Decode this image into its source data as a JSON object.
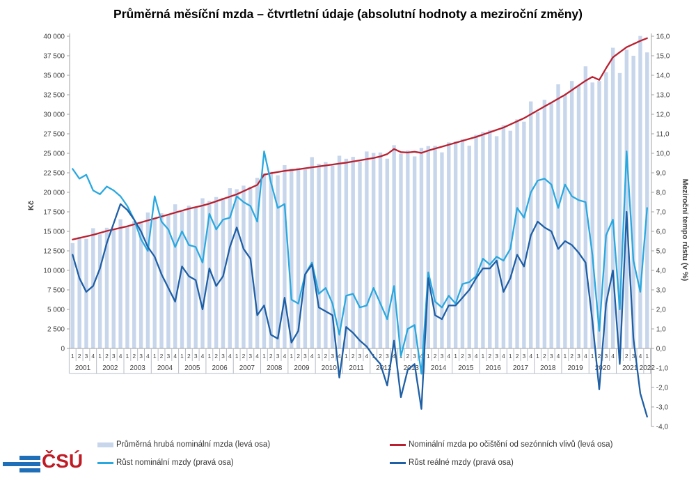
{
  "title": "Průměrná měsíční mzda – čtvrtletní údaje (absolutní hodnoty a meziroční změny)",
  "logo": {
    "text": "ČSÚ",
    "text_color": "#c01a24",
    "stripe_color": "#1f6fb8"
  },
  "colors": {
    "bar": "#c8d6ec",
    "seasonally_adjusted_line": "#b92030",
    "nominal_growth_line": "#29a8df",
    "real_growth_line": "#1e5fa5",
    "axis": "#a0a0a0",
    "tick_text": "#3f3f3f",
    "separator": "#b7bcc4"
  },
  "legend": {
    "rows": [
      [
        "Průměrná hrubá nominální mzda (levá osa)",
        "Nominální mzda po očištění od sezónních vlivů (levá osa)"
      ],
      [
        "Růst nominální mzdy (pravá osa)",
        "Růst reálné mzdy (pravá osa)"
      ]
    ]
  },
  "chart_data": {
    "type": "combo",
    "title": "Průměrná měsíční mzda – čtvrtletní údaje (absolutní hodnoty a meziroční změny)",
    "x_axis": {
      "years": [
        2001,
        2002,
        2003,
        2004,
        2005,
        2006,
        2007,
        2008,
        2009,
        2010,
        2011,
        2012,
        2013,
        2014,
        2015,
        2016,
        2017,
        2018,
        2019,
        2020,
        2021,
        2022
      ],
      "quarters_per_year": 4,
      "last_year_quarters": 1,
      "quarter_labels": [
        "1",
        "2",
        "3",
        "4"
      ]
    },
    "left_axis": {
      "label": "Kč",
      "min": 0,
      "max": 40000,
      "step": 2500
    },
    "right_axis": {
      "label": "Meziroční tempo růstu (v %)",
      "min": -4,
      "max": 16,
      "step": 1
    },
    "grid": false,
    "legend_position": "bottom",
    "series": [
      {
        "name": "Průměrná hrubá nominální mzda (levá osa)",
        "type": "bar",
        "axis": "left",
        "color": "#c8d6ec",
        "values": [
          13504,
          14296,
          14052,
          15404,
          14633,
          15460,
          15174,
          16552,
          15621,
          16303,
          16088,
          17418,
          16603,
          17322,
          17109,
          18464,
          17678,
          18289,
          18107,
          19240,
          18903,
          19397,
          19305,
          20527,
          20399,
          20857,
          20721,
          21861,
          22459,
          22630,
          22181,
          23478,
          23020,
          23151,
          22933,
          24515,
          23665,
          23873,
          23461,
          24691,
          24304,
          24541,
          23953,
          25234,
          25057,
          25105,
          24312,
          26041,
          24957,
          25356,
          24604,
          25702,
          25930,
          25964,
          25121,
          26396,
          26526,
          26821,
          25975,
          27373,
          27746,
          27974,
          27196,
          28605,
          27889,
          29346,
          29050,
          31646,
          30265,
          31851,
          31516,
          33840,
          32466,
          34271,
          33697,
          36144,
          34077,
          34271,
          35402,
          38525,
          35285,
          38275,
          37499,
          40036,
          37929
        ]
      },
      {
        "name": "Nominální mzda po očištění od sezónních vlivů (levá osa)",
        "type": "line",
        "axis": "left",
        "color": "#b92030",
        "values": [
          13950,
          14150,
          14350,
          14550,
          14800,
          15050,
          15250,
          15450,
          15650,
          15900,
          16150,
          16400,
          16650,
          16900,
          17150,
          17400,
          17650,
          17900,
          18100,
          18300,
          18550,
          18850,
          19150,
          19450,
          19750,
          20150,
          20550,
          20950,
          22250,
          22450,
          22600,
          22750,
          22850,
          22950,
          23080,
          23200,
          23320,
          23440,
          23560,
          23680,
          23800,
          23950,
          24100,
          24250,
          24400,
          24600,
          24900,
          25550,
          25150,
          25100,
          25200,
          25050,
          25350,
          25600,
          25850,
          26100,
          26350,
          26600,
          26850,
          27100,
          27400,
          27700,
          28000,
          28300,
          28700,
          29100,
          29500,
          30000,
          30500,
          31000,
          31500,
          32000,
          32500,
          33100,
          33700,
          34300,
          34800,
          34400,
          35900,
          37300,
          37950,
          38600,
          39000,
          39400,
          39750
        ]
      },
      {
        "name": "Růst nominální mzdy (pravá osa)",
        "type": "line",
        "axis": "right",
        "color": "#29a8df",
        "values": [
          9.2,
          8.7,
          8.9,
          8.1,
          7.9,
          8.3,
          8.1,
          7.8,
          7.3,
          6.6,
          5.6,
          5.0,
          7.8,
          6.5,
          6.1,
          5.2,
          6.0,
          5.3,
          5.2,
          4.4,
          6.9,
          6.1,
          6.6,
          6.7,
          7.8,
          7.5,
          7.3,
          6.5,
          10.1,
          8.5,
          7.2,
          7.4,
          2.5,
          2.3,
          3.8,
          4.4,
          2.8,
          3.1,
          2.3,
          0.7,
          2.7,
          2.8,
          2.1,
          2.2,
          3.1,
          2.3,
          1.5,
          3.2,
          -0.4,
          1.0,
          1.2,
          -1.3,
          3.9,
          2.4,
          2.1,
          2.7,
          2.3,
          3.3,
          3.4,
          3.7,
          4.6,
          4.3,
          4.7,
          4.5,
          5.1,
          7.2,
          6.7,
          8.0,
          8.6,
          8.7,
          8.4,
          7.2,
          8.4,
          7.8,
          7.6,
          7.5,
          4.8,
          0.9,
          5.8,
          6.6,
          2.0,
          10.1,
          4.5,
          2.9,
          7.2
        ]
      },
      {
        "name": "Růst reálné mzdy (pravá osa)",
        "type": "line",
        "axis": "right",
        "color": "#1e5fa5",
        "values": [
          4.8,
          3.6,
          2.9,
          3.2,
          4.1,
          5.4,
          6.4,
          7.4,
          7.1,
          6.6,
          6.0,
          5.2,
          4.7,
          3.8,
          3.1,
          2.4,
          4.2,
          3.7,
          3.5,
          2.0,
          4.1,
          3.2,
          3.7,
          5.2,
          6.2,
          5.1,
          4.6,
          1.7,
          2.2,
          0.7,
          0.5,
          2.6,
          0.3,
          0.9,
          3.8,
          4.3,
          2.1,
          1.9,
          1.7,
          -1.5,
          1.1,
          0.8,
          0.4,
          0.1,
          -0.4,
          -0.8,
          -1.9,
          0.4,
          -2.5,
          -1.1,
          -0.8,
          -3.1,
          3.6,
          1.7,
          1.5,
          2.2,
          2.2,
          2.6,
          3.0,
          3.6,
          4.1,
          4.1,
          4.5,
          2.9,
          3.6,
          4.8,
          4.2,
          5.8,
          6.5,
          6.2,
          6.0,
          5.1,
          5.5,
          5.3,
          4.9,
          4.4,
          1.4,
          -2.1,
          2.3,
          4.0,
          -0.8,
          7.0,
          0.5,
          -2.3,
          -3.5
        ]
      }
    ]
  }
}
